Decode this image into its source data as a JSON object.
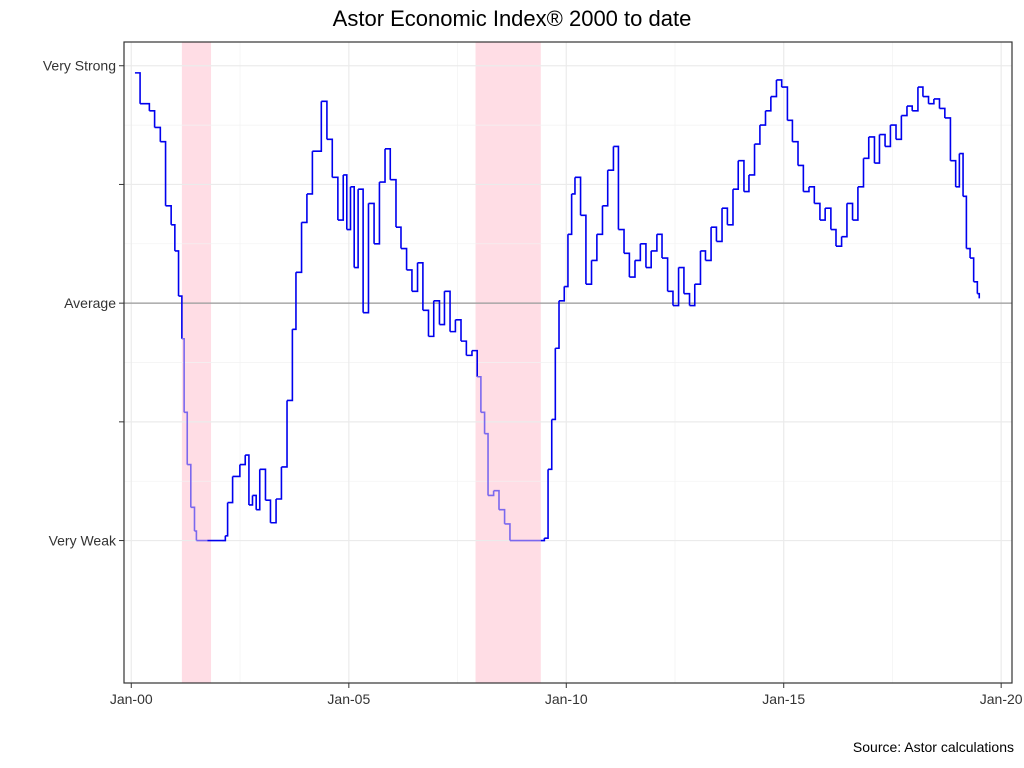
{
  "chart_data": {
    "type": "line",
    "title": "Astor Economic Index® 2000 to date",
    "caption": "Source: Astor calculations",
    "xlabel": "",
    "ylabel": "",
    "x_axis": {
      "type": "date",
      "range": [
        "1999-11-01",
        "2020-04-01"
      ],
      "ticks": [
        {
          "value": "2000-01-01",
          "label": "Jan-00"
        },
        {
          "value": "2005-01-01",
          "label": "Jan-05"
        },
        {
          "value": "2010-01-01",
          "label": "Jan-10"
        },
        {
          "value": "2015-01-01",
          "label": "Jan-15"
        },
        {
          "value": "2020-01-01",
          "label": "Jan-20"
        }
      ]
    },
    "y_axis": {
      "range": [
        -3.2,
        2.2
      ],
      "ticks": [
        {
          "value": 2,
          "label": "Very Strong"
        },
        {
          "value": 1,
          "label": ""
        },
        {
          "value": 0,
          "label": "Average"
        },
        {
          "value": -1,
          "label": ""
        },
        {
          "value": -2,
          "label": "Very Weak"
        }
      ]
    },
    "grid": true,
    "reference_line": {
      "y": 0,
      "color": "#999999"
    },
    "shaded_periods": [
      {
        "start": "2001-03-01",
        "end": "2001-11-01",
        "color": "#ffdde5"
      },
      {
        "start": "2007-12-01",
        "end": "2009-06-01",
        "color": "#ffdde5"
      }
    ],
    "series": [
      {
        "color": "#0000ee",
        "highlight_color": "#7b68ee",
        "points": [
          [
            "2000-02-01",
            1.94
          ],
          [
            "2000-03-15",
            1.68
          ],
          [
            "2000-06-01",
            1.62
          ],
          [
            "2000-07-15",
            1.48
          ],
          [
            "2000-09-01",
            1.36
          ],
          [
            "2000-10-15",
            0.82
          ],
          [
            "2000-12-01",
            0.66
          ],
          [
            "2001-01-01",
            0.44
          ],
          [
            "2001-02-01",
            0.06
          ],
          [
            "2001-03-01",
            -0.3
          ],
          [
            "2001-03-20",
            -0.92
          ],
          [
            "2001-04-15",
            -1.36
          ],
          [
            "2001-05-15",
            -1.72
          ],
          [
            "2001-06-15",
            -1.92
          ],
          [
            "2001-07-01",
            -2.0
          ],
          [
            "2001-10-01",
            -2.0
          ],
          [
            "2002-02-01",
            -2.0
          ],
          [
            "2002-03-01",
            -1.96
          ],
          [
            "2002-03-20",
            -1.68
          ],
          [
            "2002-05-01",
            -1.46
          ],
          [
            "2002-07-01",
            -1.36
          ],
          [
            "2002-08-15",
            -1.28
          ],
          [
            "2002-09-15",
            -1.7
          ],
          [
            "2002-10-15",
            -1.62
          ],
          [
            "2002-11-15",
            -1.74
          ],
          [
            "2002-12-15",
            -1.4
          ],
          [
            "2003-02-01",
            -1.66
          ],
          [
            "2003-03-15",
            -1.85
          ],
          [
            "2003-05-01",
            -1.65
          ],
          [
            "2003-06-15",
            -1.38
          ],
          [
            "2003-08-01",
            -0.82
          ],
          [
            "2003-09-15",
            -0.22
          ],
          [
            "2003-10-15",
            0.26
          ],
          [
            "2003-12-01",
            0.68
          ],
          [
            "2004-01-15",
            0.92
          ],
          [
            "2004-03-01",
            1.28
          ],
          [
            "2004-05-15",
            1.7
          ],
          [
            "2004-07-01",
            1.38
          ],
          [
            "2004-08-15",
            1.06
          ],
          [
            "2004-10-01",
            0.7
          ],
          [
            "2004-11-15",
            1.08
          ],
          [
            "2004-12-15",
            0.62
          ],
          [
            "2005-01-15",
            0.98
          ],
          [
            "2005-02-15",
            0.3
          ],
          [
            "2005-03-20",
            0.96
          ],
          [
            "2005-05-01",
            -0.08
          ],
          [
            "2005-06-15",
            0.84
          ],
          [
            "2005-08-01",
            0.5
          ],
          [
            "2005-09-15",
            1.02
          ],
          [
            "2005-11-01",
            1.3
          ],
          [
            "2005-12-15",
            1.04
          ],
          [
            "2006-02-01",
            0.64
          ],
          [
            "2006-03-15",
            0.46
          ],
          [
            "2006-05-01",
            0.28
          ],
          [
            "2006-06-15",
            0.1
          ],
          [
            "2006-08-01",
            0.34
          ],
          [
            "2006-09-15",
            -0.06
          ],
          [
            "2006-11-01",
            -0.28
          ],
          [
            "2006-12-15",
            0.02
          ],
          [
            "2007-02-01",
            -0.18
          ],
          [
            "2007-03-15",
            0.1
          ],
          [
            "2007-05-01",
            -0.24
          ],
          [
            "2007-06-15",
            -0.14
          ],
          [
            "2007-08-01",
            -0.32
          ],
          [
            "2007-09-15",
            -0.44
          ],
          [
            "2007-11-01",
            -0.4
          ],
          [
            "2007-12-15",
            -0.62
          ],
          [
            "2008-01-15",
            -0.92
          ],
          [
            "2008-02-15",
            -1.1
          ],
          [
            "2008-03-15",
            -1.62
          ],
          [
            "2008-05-01",
            -1.58
          ],
          [
            "2008-06-15",
            -1.74
          ],
          [
            "2008-08-01",
            -1.86
          ],
          [
            "2008-09-15",
            -2.0
          ],
          [
            "2009-06-01",
            -2.0
          ],
          [
            "2009-07-01",
            -1.98
          ],
          [
            "2009-08-01",
            -1.4
          ],
          [
            "2009-09-01",
            -0.98
          ],
          [
            "2009-10-01",
            -0.38
          ],
          [
            "2009-11-01",
            0.02
          ],
          [
            "2009-12-15",
            0.14
          ],
          [
            "2010-01-15",
            0.58
          ],
          [
            "2010-02-15",
            0.92
          ],
          [
            "2010-03-15",
            1.06
          ],
          [
            "2010-05-01",
            0.74
          ],
          [
            "2010-06-15",
            0.16
          ],
          [
            "2010-08-01",
            0.36
          ],
          [
            "2010-09-15",
            0.58
          ],
          [
            "2010-11-01",
            0.82
          ],
          [
            "2010-12-15",
            1.12
          ],
          [
            "2011-02-01",
            1.32
          ],
          [
            "2011-03-15",
            0.62
          ],
          [
            "2011-05-01",
            0.42
          ],
          [
            "2011-06-15",
            0.22
          ],
          [
            "2011-08-01",
            0.36
          ],
          [
            "2011-09-15",
            0.5
          ],
          [
            "2011-11-01",
            0.3
          ],
          [
            "2011-12-15",
            0.44
          ],
          [
            "2012-02-01",
            0.58
          ],
          [
            "2012-03-15",
            0.38
          ],
          [
            "2012-05-01",
            0.1
          ],
          [
            "2012-06-15",
            -0.02
          ],
          [
            "2012-08-01",
            0.3
          ],
          [
            "2012-09-15",
            0.08
          ],
          [
            "2012-11-01",
            -0.02
          ],
          [
            "2012-12-15",
            0.16
          ],
          [
            "2013-02-01",
            0.44
          ],
          [
            "2013-03-15",
            0.36
          ],
          [
            "2013-05-01",
            0.64
          ],
          [
            "2013-06-15",
            0.52
          ],
          [
            "2013-08-01",
            0.8
          ],
          [
            "2013-09-15",
            0.66
          ],
          [
            "2013-11-01",
            0.96
          ],
          [
            "2013-12-15",
            1.2
          ],
          [
            "2014-02-01",
            0.94
          ],
          [
            "2014-03-15",
            1.08
          ],
          [
            "2014-05-01",
            1.34
          ],
          [
            "2014-06-15",
            1.5
          ],
          [
            "2014-08-01",
            1.62
          ],
          [
            "2014-09-15",
            1.74
          ],
          [
            "2014-11-01",
            1.88
          ],
          [
            "2014-12-15",
            1.82
          ],
          [
            "2015-02-01",
            1.54
          ],
          [
            "2015-03-15",
            1.36
          ],
          [
            "2015-05-01",
            1.16
          ],
          [
            "2015-06-15",
            0.94
          ],
          [
            "2015-08-01",
            0.98
          ],
          [
            "2015-09-15",
            0.84
          ],
          [
            "2015-11-01",
            0.7
          ],
          [
            "2015-12-15",
            0.8
          ],
          [
            "2016-02-01",
            0.62
          ],
          [
            "2016-03-15",
            0.48
          ],
          [
            "2016-05-01",
            0.56
          ],
          [
            "2016-06-15",
            0.84
          ],
          [
            "2016-08-01",
            0.7
          ],
          [
            "2016-09-15",
            0.98
          ],
          [
            "2016-11-01",
            1.22
          ],
          [
            "2016-12-15",
            1.4
          ],
          [
            "2017-02-01",
            1.18
          ],
          [
            "2017-03-15",
            1.42
          ],
          [
            "2017-05-01",
            1.32
          ],
          [
            "2017-06-15",
            1.5
          ],
          [
            "2017-08-01",
            1.38
          ],
          [
            "2017-09-15",
            1.58
          ],
          [
            "2017-11-01",
            1.66
          ],
          [
            "2017-12-15",
            1.62
          ],
          [
            "2018-02-01",
            1.82
          ],
          [
            "2018-03-15",
            1.74
          ],
          [
            "2018-05-01",
            1.68
          ],
          [
            "2018-06-15",
            1.72
          ],
          [
            "2018-08-01",
            1.64
          ],
          [
            "2018-09-15",
            1.56
          ],
          [
            "2018-11-01",
            1.2
          ],
          [
            "2018-12-15",
            0.98
          ],
          [
            "2019-01-15",
            1.26
          ],
          [
            "2019-02-15",
            0.9
          ],
          [
            "2019-03-15",
            0.46
          ],
          [
            "2019-04-15",
            0.38
          ],
          [
            "2019-05-15",
            0.18
          ],
          [
            "2019-06-15",
            0.08
          ],
          [
            "2019-07-01",
            0.04
          ]
        ]
      }
    ]
  }
}
